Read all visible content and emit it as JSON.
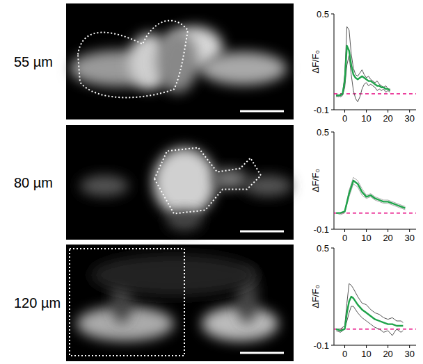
{
  "chart_data": [
    {
      "type": "line",
      "title": "55 µm",
      "y_label": "ΔF/F₀",
      "x": [
        -4,
        -3,
        -2,
        -1,
        0,
        1,
        2,
        3,
        4,
        5,
        6,
        7,
        8,
        9,
        10,
        11,
        12,
        13,
        14,
        15,
        16,
        17,
        18,
        19,
        20,
        21
      ],
      "series": [
        {
          "color": "#555555",
          "values": [
            -0.01,
            -0.02,
            0.0,
            0.0,
            0.12,
            0.42,
            0.4,
            0.25,
            0.16,
            0.12,
            0.11,
            0.13,
            0.15,
            0.12,
            0.1,
            0.11,
            0.09,
            0.08,
            0.07,
            0.08,
            0.06,
            0.05,
            0.04,
            0.05,
            0.03,
            0.03
          ]
        },
        {
          "color": "#555555",
          "values": [
            -0.02,
            -0.01,
            -0.02,
            -0.01,
            0.04,
            0.18,
            0.24,
            0.12,
            0.02,
            -0.03,
            -0.05,
            -0.02,
            0.03,
            0.06,
            0.07,
            0.05,
            0.06,
            0.05,
            0.04,
            0.02,
            0.03,
            0.02,
            0.03,
            0.01,
            0.02,
            0.01
          ]
        },
        {
          "color": "#1fa34a",
          "values": [
            -0.01,
            -0.01,
            -0.01,
            0.0,
            0.08,
            0.3,
            0.27,
            0.18,
            0.12,
            0.1,
            0.09,
            0.1,
            0.11,
            0.1,
            0.09,
            0.08,
            0.08,
            0.07,
            0.06,
            0.05,
            0.05,
            0.04,
            0.04,
            0.03,
            0.03,
            0.02
          ]
        }
      ],
      "baseline": 0,
      "xlim": [
        -5,
        33
      ],
      "xticks": [
        0,
        10,
        20,
        30
      ],
      "ylim": [
        -0.1,
        0.5
      ],
      "yticks": [
        -0.1,
        0.5
      ]
    },
    {
      "type": "line",
      "title": "80 µm",
      "y_label": "ΔF/F₀",
      "x": [
        -4,
        -2,
        0,
        2,
        4,
        6,
        8,
        10,
        12,
        14,
        16,
        18,
        20,
        22,
        24,
        26,
        28
      ],
      "series": [
        {
          "color": "#aaaaaa",
          "values": [
            0.0,
            0.0,
            0.01,
            0.14,
            0.22,
            0.2,
            0.15,
            0.11,
            0.12,
            0.1,
            0.09,
            0.08,
            0.08,
            0.07,
            0.06,
            0.05,
            0.04
          ]
        },
        {
          "color": "#aaaaaa",
          "values": [
            0.0,
            -0.01,
            0.0,
            0.1,
            0.18,
            0.16,
            0.11,
            0.09,
            0.1,
            0.08,
            0.07,
            0.06,
            0.06,
            0.05,
            0.04,
            0.03,
            0.02
          ]
        },
        {
          "color": "#1fa34a",
          "values": [
            0.0,
            0.0,
            0.01,
            0.12,
            0.2,
            0.18,
            0.13,
            0.1,
            0.11,
            0.09,
            0.08,
            0.07,
            0.07,
            0.06,
            0.05,
            0.04,
            0.03
          ]
        }
      ],
      "baseline": 0,
      "xlim": [
        -5,
        33
      ],
      "xticks": [
        0,
        10,
        20,
        30
      ],
      "ylim": [
        -0.1,
        0.5
      ],
      "yticks": [
        -0.1,
        0.5
      ]
    },
    {
      "type": "line",
      "title": "120 µm",
      "y_label": "ΔF/F₀",
      "x": [
        -4,
        -2,
        0,
        1,
        2,
        3,
        4,
        6,
        8,
        10,
        12,
        14,
        16,
        18,
        20,
        22,
        24,
        26,
        27
      ],
      "series": [
        {
          "color": "#555555",
          "values": [
            0.0,
            0.0,
            0.02,
            0.16,
            0.28,
            0.27,
            0.25,
            0.2,
            0.16,
            0.15,
            0.12,
            0.1,
            0.09,
            0.07,
            0.06,
            0.07,
            0.05,
            0.05,
            0.04
          ]
        },
        {
          "color": "#555555",
          "values": [
            -0.01,
            -0.02,
            0.0,
            0.05,
            0.1,
            0.14,
            0.14,
            0.1,
            0.07,
            0.05,
            0.03,
            0.01,
            0.0,
            -0.02,
            -0.01,
            -0.04,
            0.0,
            -0.02,
            -0.01
          ]
        },
        {
          "color": "#1fa34a",
          "values": [
            0.0,
            -0.01,
            0.0,
            0.1,
            0.17,
            0.2,
            0.19,
            0.15,
            0.12,
            0.1,
            0.08,
            0.06,
            0.05,
            0.04,
            0.03,
            0.03,
            0.02,
            0.02,
            0.02
          ]
        }
      ],
      "baseline": 0,
      "xlim": [
        -5,
        33
      ],
      "xticks": [
        0,
        10,
        20,
        30
      ],
      "ylim": [
        -0.1,
        0.5
      ],
      "yticks": [
        -0.1,
        0.5
      ]
    }
  ]
}
